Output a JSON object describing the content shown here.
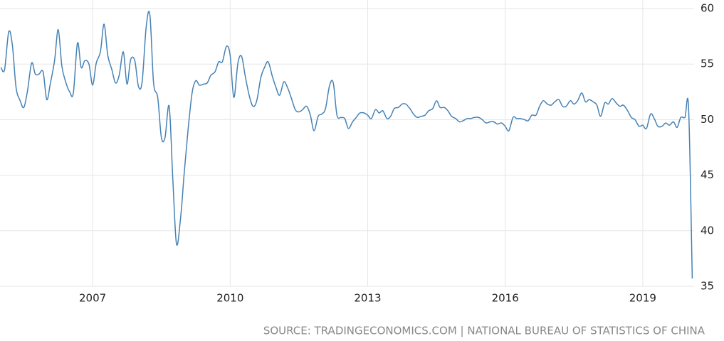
{
  "chart_data": {
    "type": "line",
    "source": "SOURCE: TRADINGECONOMICS.COM | NATIONAL BUREAU OF STATISTICS OF CHINA",
    "x": [
      2005,
      2005.08,
      2005.17,
      2005.25,
      2005.33,
      2005.42,
      2005.5,
      2005.58,
      2005.67,
      2005.75,
      2005.83,
      2005.92,
      2006,
      2006.08,
      2006.17,
      2006.25,
      2006.33,
      2006.42,
      2006.5,
      2006.58,
      2006.67,
      2006.75,
      2006.83,
      2006.92,
      2007,
      2007.08,
      2007.17,
      2007.25,
      2007.33,
      2007.42,
      2007.5,
      2007.58,
      2007.67,
      2007.75,
      2007.83,
      2007.92,
      2008,
      2008.08,
      2008.17,
      2008.25,
      2008.33,
      2008.42,
      2008.5,
      2008.58,
      2008.67,
      2008.75,
      2008.83,
      2008.92,
      2009,
      2009.08,
      2009.17,
      2009.25,
      2009.33,
      2009.42,
      2009.5,
      2009.58,
      2009.67,
      2009.75,
      2009.83,
      2009.92,
      2010,
      2010.08,
      2010.17,
      2010.25,
      2010.33,
      2010.42,
      2010.5,
      2010.58,
      2010.67,
      2010.75,
      2010.83,
      2010.92,
      2011,
      2011.08,
      2011.17,
      2011.25,
      2011.33,
      2011.42,
      2011.5,
      2011.58,
      2011.67,
      2011.75,
      2011.83,
      2011.92,
      2012,
      2012.08,
      2012.17,
      2012.25,
      2012.33,
      2012.42,
      2012.5,
      2012.58,
      2012.67,
      2012.75,
      2012.83,
      2012.92,
      2013,
      2013.08,
      2013.17,
      2013.25,
      2013.33,
      2013.42,
      2013.5,
      2013.58,
      2013.67,
      2013.75,
      2013.83,
      2013.92,
      2014,
      2014.08,
      2014.17,
      2014.25,
      2014.33,
      2014.42,
      2014.5,
      2014.58,
      2014.67,
      2014.75,
      2014.83,
      2014.92,
      2015,
      2015.08,
      2015.17,
      2015.25,
      2015.33,
      2015.42,
      2015.5,
      2015.58,
      2015.67,
      2015.75,
      2015.83,
      2015.92,
      2016,
      2016.08,
      2016.17,
      2016.25,
      2016.33,
      2016.42,
      2016.5,
      2016.58,
      2016.67,
      2016.75,
      2016.83,
      2016.92,
      2017,
      2017.08,
      2017.17,
      2017.25,
      2017.33,
      2017.42,
      2017.5,
      2017.58,
      2017.67,
      2017.75,
      2017.83,
      2017.92,
      2018,
      2018.08,
      2018.17,
      2018.25,
      2018.33,
      2018.42,
      2018.5,
      2018.58,
      2018.67,
      2018.75,
      2018.83,
      2018.92,
      2019,
      2019.08,
      2019.17,
      2019.25,
      2019.33,
      2019.42,
      2019.5,
      2019.58,
      2019.67,
      2019.75,
      2019.83,
      2019.92,
      2020,
      2020.08
    ],
    "series": [
      {
        "color": "#4682b4",
        "values": [
          54.7,
          54.5,
          57.9,
          56.7,
          52.9,
          51.7,
          51.1,
          52.6,
          55.1,
          54.1,
          54.1,
          54.3,
          51.8,
          53.3,
          55.3,
          58.1,
          54.8,
          53.3,
          52.5,
          52.4,
          56.9,
          54.7,
          55.3,
          55.0,
          53.1,
          55.1,
          56.1,
          58.6,
          55.8,
          54.5,
          53.3,
          54.0,
          56.1,
          53.2,
          55.4,
          55.3,
          53.0,
          53.4,
          58.4,
          59.4,
          53.3,
          52.0,
          48.4,
          48.4,
          51.2,
          44.6,
          38.8,
          41.2,
          45.3,
          49.0,
          52.4,
          53.5,
          53.1,
          53.2,
          53.3,
          54.0,
          54.3,
          55.2,
          55.2,
          56.6,
          55.8,
          52.0,
          55.1,
          55.7,
          53.9,
          52.1,
          51.2,
          51.7,
          53.8,
          54.7,
          55.2,
          53.9,
          52.9,
          52.2,
          53.4,
          52.9,
          52.0,
          50.9,
          50.7,
          50.9,
          51.2,
          50.4,
          49.0,
          50.3,
          50.5,
          51.0,
          53.1,
          53.3,
          50.4,
          50.2,
          50.1,
          49.2,
          49.8,
          50.2,
          50.6,
          50.6,
          50.4,
          50.1,
          50.9,
          50.6,
          50.8,
          50.1,
          50.3,
          51.0,
          51.1,
          51.4,
          51.4,
          51.0,
          50.5,
          50.2,
          50.3,
          50.4,
          50.8,
          51.0,
          51.7,
          51.1,
          51.1,
          50.8,
          50.3,
          50.1,
          49.8,
          49.9,
          50.1,
          50.1,
          50.2,
          50.2,
          50.0,
          49.7,
          49.8,
          49.8,
          49.6,
          49.7,
          49.4,
          49.0,
          50.2,
          50.1,
          50.1,
          50.0,
          49.9,
          50.4,
          50.4,
          51.2,
          51.7,
          51.4,
          51.3,
          51.6,
          51.8,
          51.2,
          51.2,
          51.7,
          51.4,
          51.7,
          52.4,
          51.6,
          51.8,
          51.6,
          51.3,
          50.3,
          51.5,
          51.4,
          51.9,
          51.5,
          51.2,
          51.3,
          50.8,
          50.2,
          50.0,
          49.4,
          49.5,
          49.2,
          50.5,
          50.1,
          49.4,
          49.4,
          49.7,
          49.5,
          49.8,
          49.3,
          50.2,
          50.2,
          51.0,
          35.7
        ]
      }
    ],
    "xlim": [
      2004.98,
      2020.12
    ],
    "xticks": [
      2007,
      2010,
      2013,
      2016,
      2019
    ],
    "ylim": [
      35,
      60
    ],
    "yticks": [
      35,
      40,
      45,
      50,
      55,
      60
    ],
    "grid": true
  }
}
